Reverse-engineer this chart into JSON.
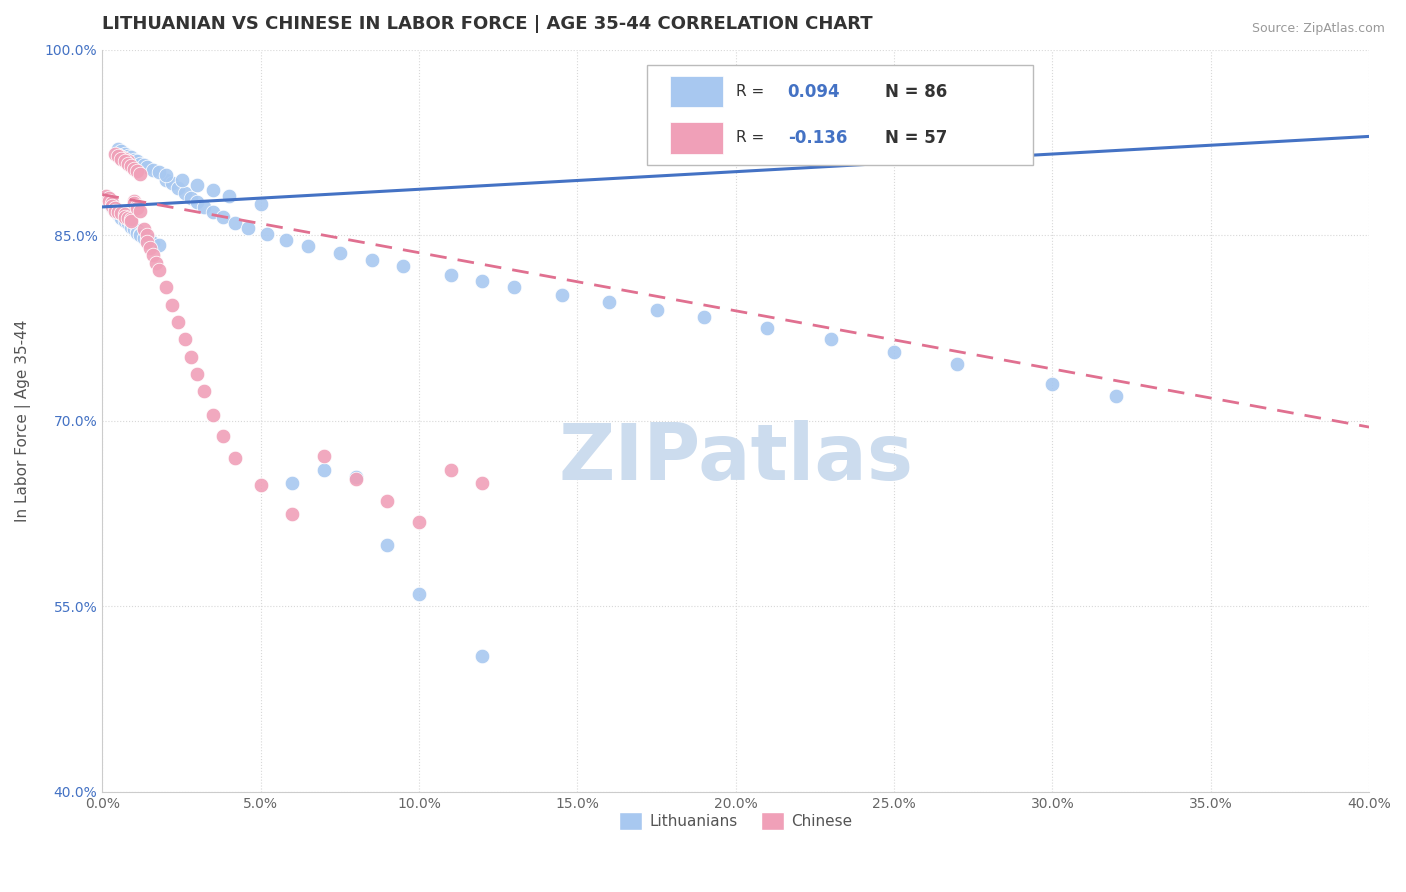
{
  "title": "LITHUANIAN VS CHINESE IN LABOR FORCE | AGE 35-44 CORRELATION CHART",
  "source": "Source: ZipAtlas.com",
  "ylabel": "In Labor Force | Age 35-44",
  "xlim": [
    0.0,
    0.4
  ],
  "ylim": [
    0.4,
    1.0
  ],
  "x_ticks": [
    0.0,
    0.05,
    0.1,
    0.15,
    0.2,
    0.25,
    0.3,
    0.35,
    0.4
  ],
  "y_ticks": [
    0.4,
    0.55,
    0.7,
    0.85,
    1.0
  ],
  "x_tick_labels": [
    "0.0%",
    "5.0%",
    "10.0%",
    "15.0%",
    "20.0%",
    "25.0%",
    "30.0%",
    "35.0%",
    "40.0%"
  ],
  "y_tick_labels": [
    "40.0%",
    "55.0%",
    "70.0%",
    "85.0%",
    "100.0%"
  ],
  "r_lithuanian": 0.094,
  "n_lithuanian": 86,
  "r_chinese": -0.136,
  "n_chinese": 57,
  "blue_color": "#a8c8f0",
  "pink_color": "#f0a0b8",
  "line_blue": "#4472c4",
  "line_pink": "#e07090",
  "watermark": "ZIPatlas",
  "watermark_color": "#ccdcee",
  "background_color": "#ffffff",
  "grid_color": "#d8d8d8",
  "legend_r_color": "#4472c4",
  "title_fontsize": 13,
  "axis_label_fontsize": 11,
  "tick_fontsize": 10,
  "blue_x": [
    0.001,
    0.002,
    0.002,
    0.003,
    0.003,
    0.004,
    0.004,
    0.005,
    0.005,
    0.005,
    0.006,
    0.006,
    0.006,
    0.007,
    0.007,
    0.007,
    0.008,
    0.008,
    0.008,
    0.009,
    0.009,
    0.01,
    0.01,
    0.011,
    0.011,
    0.012,
    0.012,
    0.013,
    0.014,
    0.015,
    0.016,
    0.018,
    0.02,
    0.022,
    0.024,
    0.026,
    0.028,
    0.03,
    0.032,
    0.035,
    0.038,
    0.042,
    0.046,
    0.052,
    0.058,
    0.065,
    0.075,
    0.085,
    0.095,
    0.11,
    0.12,
    0.13,
    0.145,
    0.16,
    0.175,
    0.19,
    0.21,
    0.23,
    0.25,
    0.27,
    0.3,
    0.32,
    0.005,
    0.006,
    0.007,
    0.008,
    0.009,
    0.01,
    0.011,
    0.012,
    0.013,
    0.014,
    0.016,
    0.018,
    0.02,
    0.025,
    0.03,
    0.035,
    0.04,
    0.05,
    0.06,
    0.07,
    0.08,
    0.09,
    0.1,
    0.12
  ],
  "blue_y": [
    0.88,
    0.878,
    0.876,
    0.875,
    0.873,
    0.872,
    0.87,
    0.869,
    0.867,
    0.915,
    0.866,
    0.913,
    0.864,
    0.863,
    0.912,
    0.862,
    0.861,
    0.91,
    0.86,
    0.858,
    0.857,
    0.856,
    0.855,
    0.854,
    0.852,
    0.851,
    0.85,
    0.848,
    0.847,
    0.846,
    0.844,
    0.842,
    0.895,
    0.892,
    0.888,
    0.884,
    0.88,
    0.877,
    0.873,
    0.869,
    0.865,
    0.86,
    0.856,
    0.851,
    0.846,
    0.841,
    0.836,
    0.83,
    0.825,
    0.818,
    0.813,
    0.808,
    0.802,
    0.796,
    0.79,
    0.784,
    0.775,
    0.766,
    0.756,
    0.746,
    0.73,
    0.72,
    0.92,
    0.918,
    0.916,
    0.914,
    0.913,
    0.911,
    0.91,
    0.908,
    0.907,
    0.905,
    0.903,
    0.901,
    0.899,
    0.895,
    0.891,
    0.887,
    0.882,
    0.875,
    0.65,
    0.66,
    0.655,
    0.6,
    0.56,
    0.51
  ],
  "pink_x": [
    0.001,
    0.002,
    0.002,
    0.003,
    0.003,
    0.004,
    0.004,
    0.005,
    0.005,
    0.006,
    0.006,
    0.007,
    0.007,
    0.007,
    0.008,
    0.008,
    0.009,
    0.009,
    0.01,
    0.01,
    0.011,
    0.011,
    0.012,
    0.013,
    0.014,
    0.014,
    0.015,
    0.016,
    0.017,
    0.018,
    0.02,
    0.022,
    0.024,
    0.026,
    0.028,
    0.03,
    0.032,
    0.035,
    0.038,
    0.042,
    0.05,
    0.06,
    0.07,
    0.08,
    0.09,
    0.1,
    0.11,
    0.12,
    0.004,
    0.005,
    0.006,
    0.007,
    0.008,
    0.009,
    0.01,
    0.011,
    0.012
  ],
  "pink_y": [
    0.882,
    0.88,
    0.878,
    0.876,
    0.874,
    0.872,
    0.87,
    0.869,
    0.915,
    0.868,
    0.913,
    0.867,
    0.912,
    0.865,
    0.864,
    0.91,
    0.863,
    0.862,
    0.878,
    0.876,
    0.874,
    0.872,
    0.87,
    0.855,
    0.85,
    0.845,
    0.84,
    0.834,
    0.828,
    0.822,
    0.808,
    0.794,
    0.78,
    0.766,
    0.752,
    0.738,
    0.724,
    0.705,
    0.688,
    0.67,
    0.648,
    0.625,
    0.672,
    0.653,
    0.635,
    0.618,
    0.66,
    0.65,
    0.916,
    0.914,
    0.912,
    0.91,
    0.908,
    0.906,
    0.904,
    0.902,
    0.9
  ],
  "blue_trend_x": [
    0.0,
    0.4
  ],
  "blue_trend_y": [
    0.873,
    0.93
  ],
  "pink_trend_x": [
    0.0,
    0.4
  ],
  "pink_trend_y": [
    0.883,
    0.695
  ]
}
